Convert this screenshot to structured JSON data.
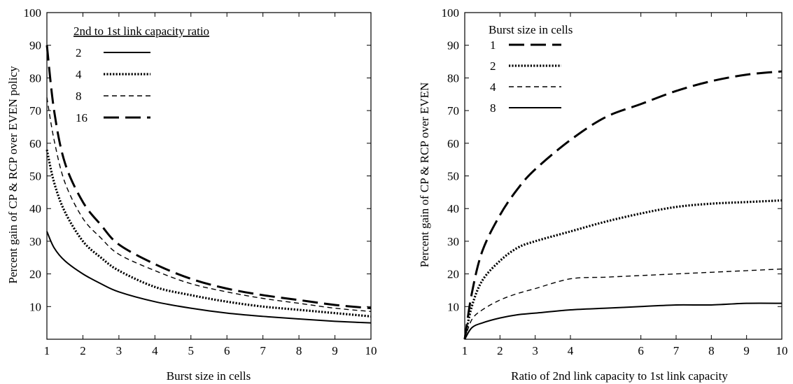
{
  "chart_data": [
    {
      "type": "line",
      "xlabel": "Burst size in cells",
      "ylabel": "Percent gain of CP & RCP over EVEN policy",
      "xlim": [
        1,
        10
      ],
      "ylim": [
        0,
        100
      ],
      "xticks": [
        "1",
        "2",
        "3",
        "4",
        "5",
        "6",
        "7",
        "8",
        "9",
        "10"
      ],
      "yticks": [
        "10",
        "20",
        "30",
        "40",
        "50",
        "60",
        "70",
        "80",
        "90",
        "100"
      ],
      "legend_title": "2nd to 1st link capacity ratio",
      "legend_placement": "top-left",
      "grid": false,
      "series": [
        {
          "name": "2",
          "style": "solid",
          "x": [
            1,
            1.2,
            1.5,
            2,
            2.5,
            3,
            4,
            5,
            6,
            7,
            8,
            9,
            10
          ],
          "y": [
            33,
            28,
            24,
            20,
            17,
            14.5,
            11.5,
            9.5,
            8,
            7,
            6.2,
            5.5,
            5
          ]
        },
        {
          "name": "4",
          "style": "dotted",
          "x": [
            1,
            1.2,
            1.5,
            2,
            2.5,
            3,
            4,
            5,
            6,
            7,
            8,
            9,
            10
          ],
          "y": [
            58,
            48,
            39,
            30,
            25,
            21,
            16,
            13.5,
            11.5,
            10,
            9,
            8,
            7
          ]
        },
        {
          "name": "8",
          "style": "short-dash",
          "x": [
            1,
            1.2,
            1.5,
            2,
            2.5,
            3,
            4,
            5,
            6,
            7,
            8,
            9,
            10
          ],
          "y": [
            74,
            61,
            48,
            37,
            31,
            26,
            21,
            17,
            14.5,
            12.5,
            11,
            9.5,
            8.5
          ]
        },
        {
          "name": "16",
          "style": "long-dash",
          "x": [
            1,
            1.2,
            1.5,
            2,
            2.5,
            3,
            4,
            5,
            6,
            7,
            8,
            9,
            10
          ],
          "y": [
            90,
            70,
            54,
            42,
            35,
            29,
            23,
            18.5,
            15.5,
            13.5,
            12,
            10.5,
            9.5
          ]
        }
      ]
    },
    {
      "type": "line",
      "xlabel": "Ratio of 2nd link capacity to 1st link capacity",
      "ylabel": "Percent gain of CP & RCP over EVEN",
      "xlim": [
        1,
        10
      ],
      "ylim": [
        0,
        100
      ],
      "xticks": [
        "1",
        "2",
        "3",
        "4",
        "6",
        "7",
        "8",
        "9",
        "10"
      ],
      "xtick_values": [
        1,
        2,
        3,
        4,
        6,
        7,
        8,
        9,
        10
      ],
      "yticks": [
        "10",
        "20",
        "30",
        "40",
        "50",
        "60",
        "70",
        "80",
        "90",
        "100"
      ],
      "legend_title": "Burst size in cells",
      "legend_placement": "top-left",
      "grid": false,
      "series": [
        {
          "name": "1",
          "style": "long-dash",
          "x": [
            1,
            1.2,
            1.5,
            2,
            2.5,
            3,
            4,
            5,
            6,
            7,
            8,
            9,
            10
          ],
          "y": [
            0,
            14,
            27,
            38,
            46,
            52,
            61,
            68,
            72,
            76,
            79,
            81,
            82
          ]
        },
        {
          "name": "2",
          "style": "dotted",
          "x": [
            1,
            1.2,
            1.5,
            2,
            2.5,
            3,
            4,
            5,
            6,
            7,
            8,
            9,
            10
          ],
          "y": [
            0,
            10,
            18,
            24,
            28,
            30,
            33,
            36,
            38.5,
            40.5,
            41.5,
            42,
            42.5
          ]
        },
        {
          "name": "4",
          "style": "short-dash",
          "x": [
            1,
            1.2,
            1.5,
            2,
            2.5,
            3,
            4,
            5,
            6,
            7,
            8,
            9,
            10
          ],
          "y": [
            0,
            6,
            9,
            12,
            14,
            15.5,
            18.5,
            19,
            19.5,
            20,
            20.5,
            21,
            21.5
          ]
        },
        {
          "name": "8",
          "style": "solid",
          "x": [
            1,
            1.2,
            1.5,
            2,
            2.5,
            3,
            4,
            5,
            6,
            7,
            8,
            9,
            10
          ],
          "y": [
            0,
            3.5,
            5,
            6.5,
            7.5,
            8,
            9,
            9.5,
            10,
            10.5,
            10.5,
            11,
            11
          ]
        }
      ]
    }
  ]
}
